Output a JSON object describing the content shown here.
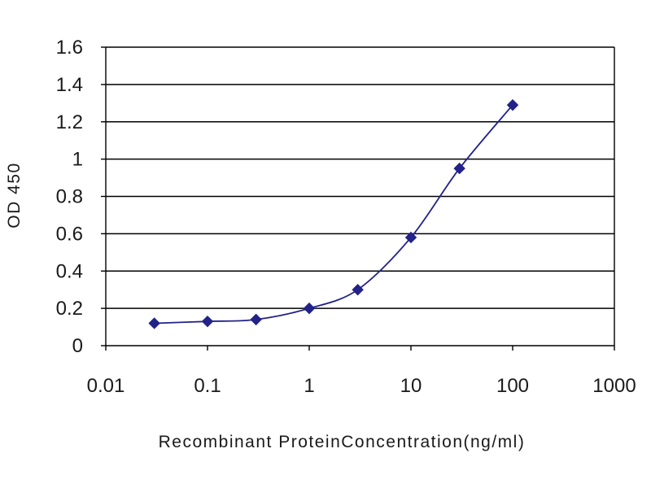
{
  "chart_data": {
    "type": "line",
    "title": "",
    "xlabel": "Recombinant ProteinConcentration(ng/ml)",
    "ylabel": "OD 450",
    "xscale": "log",
    "xlim": [
      0.01,
      1000
    ],
    "ylim": [
      0,
      1.6
    ],
    "x_ticks": [
      0.01,
      0.1,
      1,
      10,
      100,
      1000
    ],
    "x_tick_labels": [
      "0.01",
      "0.1",
      "1",
      "10",
      "100",
      "1000"
    ],
    "y_ticks": [
      0,
      0.2,
      0.4,
      0.6,
      0.8,
      1,
      1.2,
      1.4,
      1.6
    ],
    "y_tick_labels": [
      "0",
      "0.2",
      "0.4",
      "0.6",
      "0.8",
      "1",
      "1.2",
      "1.4",
      "1.6"
    ],
    "grid": "horizontal",
    "legend": "none",
    "series": [
      {
        "x": [
          0.03,
          0.1,
          0.3,
          1,
          3,
          10,
          30,
          100
        ],
        "y": [
          0.12,
          0.13,
          0.14,
          0.2,
          0.3,
          0.58,
          0.95,
          1.29
        ],
        "color": "#22228a",
        "marker": "diamond"
      }
    ]
  }
}
